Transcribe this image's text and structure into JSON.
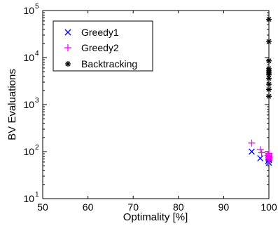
{
  "chart_data": {
    "type": "scatter",
    "title": "",
    "xlabel": "Optimality [%]",
    "ylabel": "BV Evaluations",
    "xlim": [
      50,
      100
    ],
    "ylim": [
      10,
      100000
    ],
    "yscale": "log",
    "x_ticks": [
      "50",
      "60",
      "70",
      "80",
      "90",
      "100"
    ],
    "y_ticks": [
      {
        "base": "10",
        "exp": "1"
      },
      {
        "base": "10",
        "exp": "2"
      },
      {
        "base": "10",
        "exp": "3"
      },
      {
        "base": "10",
        "exp": "4"
      },
      {
        "base": "10",
        "exp": "5"
      }
    ],
    "grid": false,
    "legend_position": "top-left",
    "series": [
      {
        "name": "Greedy1",
        "marker": "x",
        "color": "#0000ff",
        "points": [
          [
            96.2,
            100
          ],
          [
            98.1,
            72
          ],
          [
            99.8,
            62
          ],
          [
            100,
            58
          ],
          [
            100,
            66
          ],
          [
            100,
            70
          ],
          [
            100,
            74
          ]
        ]
      },
      {
        "name": "Greedy2",
        "marker": "+",
        "color": "#ff00ff",
        "points": [
          [
            96.2,
            152
          ],
          [
            98.1,
            110
          ],
          [
            98.4,
            95
          ],
          [
            99.8,
            83
          ],
          [
            100,
            88
          ],
          [
            100,
            80
          ],
          [
            100,
            75
          ],
          [
            100,
            70
          ],
          [
            100,
            92
          ],
          [
            100,
            64
          ]
        ]
      },
      {
        "name": "Backtracking",
        "marker": "*",
        "color": "#000000",
        "points": [
          [
            100,
            65000
          ],
          [
            100,
            22000
          ],
          [
            100,
            8500
          ],
          [
            100,
            5800
          ],
          [
            100,
            5200
          ],
          [
            100,
            4700
          ],
          [
            100,
            4300
          ],
          [
            100,
            3600
          ],
          [
            100,
            2700
          ],
          [
            100,
            2100
          ],
          [
            100,
            1500
          ]
        ]
      }
    ]
  }
}
